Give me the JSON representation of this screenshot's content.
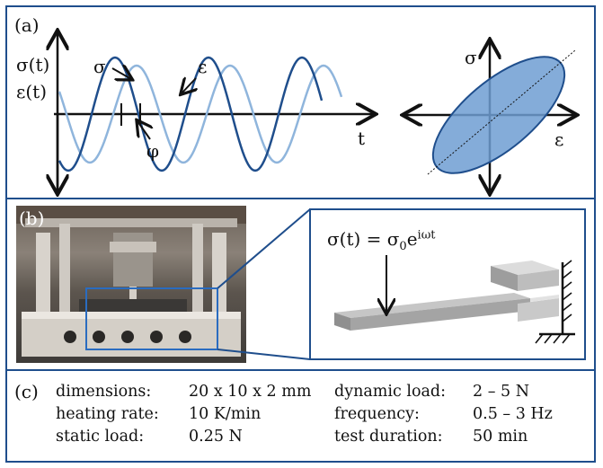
{
  "panel_a": {
    "label": "(a)",
    "sigma_t": "σ(t)",
    "eps_t": "ε(t)",
    "sigma": "σ",
    "eps": "ε",
    "t": "t",
    "phi": "φ",
    "ellipse_sigma": "σ",
    "ellipse_eps": "ε"
  },
  "panel_b": {
    "label": "(b)",
    "eq_lhs": "σ(t) = σ",
    "eq_sub": "0",
    "eq_sup": "e",
    "eq_exp": "iωt"
  },
  "panel_c": {
    "label": "(c)",
    "rows": [
      [
        "dimensions:",
        "20 x 10 x 2 mm",
        "dynamic load:",
        "2 – 5 N"
      ],
      [
        "heating rate:",
        "10 K/min",
        "frequency:",
        "0.5 – 3 Hz"
      ],
      [
        "static load:",
        "0.25 N",
        "test duration:",
        "50 min"
      ]
    ]
  },
  "colors": {
    "frame": "#1f4e8c",
    "stress_wave": "#1f4e8c",
    "strain_wave": "#8fb5dc",
    "ellipse_fill": "#6f9ed2"
  },
  "icons": [
    "photo-dma-instrument",
    "cantilever-beam-schematic",
    "fixed-support-hatch"
  ]
}
